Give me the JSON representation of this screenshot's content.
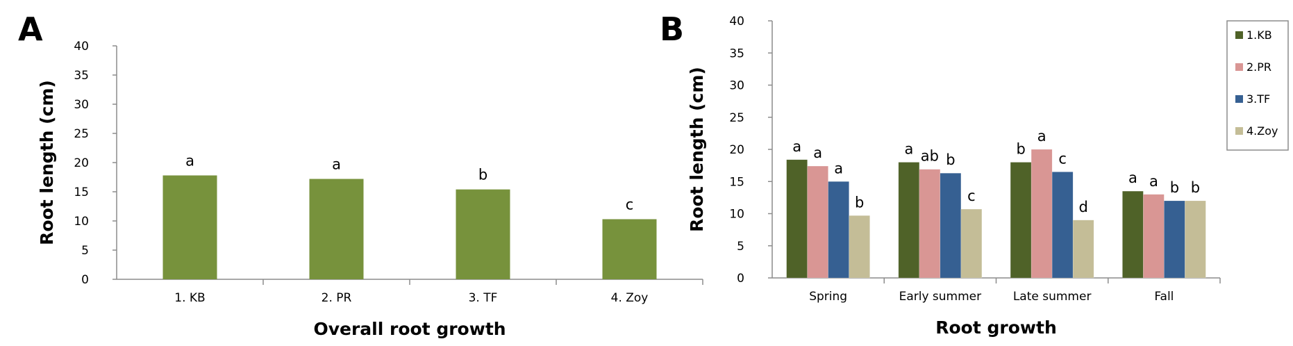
{
  "chart_data": [
    {
      "panel_label": "A",
      "type": "bar",
      "xlabel": "Overall root growth",
      "ylabel": "Root length (cm)",
      "ylim": [
        0,
        40
      ],
      "yticks": [
        "0",
        "5",
        "10",
        "15",
        "20",
        "25",
        "30",
        "35",
        "40"
      ],
      "grid": false,
      "categories": [
        "1. KB",
        "2. PR",
        "3. TF",
        "4. Zoy"
      ],
      "values": [
        17.8,
        17.2,
        15.4,
        10.3
      ],
      "annotations": [
        "a",
        "a",
        "b",
        "c"
      ],
      "color": "#77923c"
    },
    {
      "panel_label": "B",
      "type": "bar",
      "xlabel": "Root growth",
      "ylabel": "Root length (cm)",
      "ylim": [
        0,
        40
      ],
      "yticks": [
        "0",
        "5",
        "10",
        "15",
        "20",
        "25",
        "30",
        "35",
        "40"
      ],
      "grid": false,
      "legend_position": "top-right",
      "categories": [
        "Spring",
        "Early summer",
        "Late summer",
        "Fall"
      ],
      "series": [
        {
          "name": "1.KB",
          "color": "#4f6228",
          "values": [
            18.4,
            18.0,
            18.0,
            13.5
          ],
          "annotations": [
            "a",
            "a",
            "b",
            "a"
          ]
        },
        {
          "name": "2.PR",
          "color": "#d99694",
          "values": [
            17.4,
            16.9,
            20.0,
            13.0
          ],
          "annotations": [
            "a",
            "ab",
            "a",
            "a"
          ]
        },
        {
          "name": "3.TF",
          "color": "#366092",
          "values": [
            15.0,
            16.3,
            16.5,
            12.0
          ],
          "annotations": [
            "a",
            "b",
            "c",
            "b"
          ]
        },
        {
          "name": "4.Zoy",
          "color": "#c4bd97",
          "values": [
            9.7,
            10.7,
            9.0,
            12.0
          ],
          "annotations": [
            "b",
            "c",
            "d",
            "b"
          ]
        }
      ]
    }
  ]
}
